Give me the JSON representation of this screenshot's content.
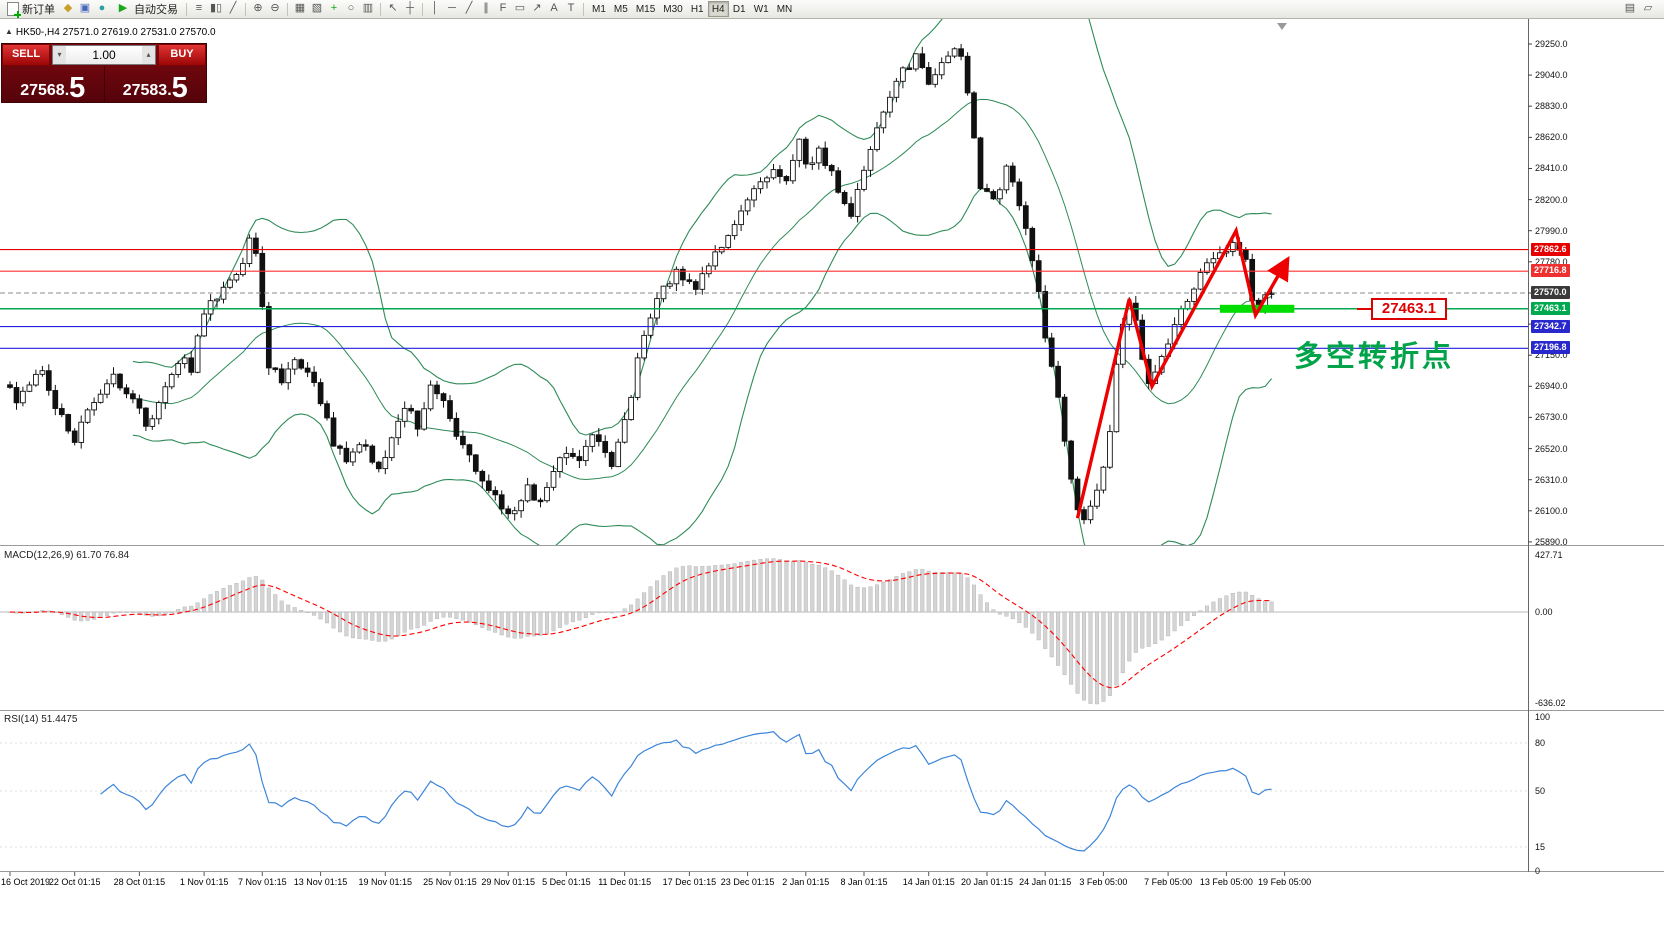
{
  "toolbar": {
    "new_order_label": "新订单",
    "autotrade_label": "自动交易",
    "timeframes": [
      "M1",
      "M5",
      "M15",
      "M30",
      "H1",
      "H4",
      "D1",
      "W1",
      "MN"
    ],
    "active_timeframe": "H4"
  },
  "icons": {
    "collapse_triangle": "▲",
    "spinner_down": "▾",
    "spinner_up": "▴",
    "metaeditor": "◆",
    "guides": "▣",
    "news": "●",
    "autotrade_play": "▶",
    "chart_bars": "≡",
    "chart_candles": "▮▯",
    "chart_line": "╱",
    "zoom_in": "⊕",
    "zoom_out": "⊖",
    "tile": "▦",
    "cascade": "▧",
    "indicators": "+",
    "cycles": "○",
    "templates": "▥",
    "cursor": "↖",
    "crosshair": "┼",
    "vline": "│",
    "hline": "─",
    "trend": "╱",
    "channel": "∥",
    "fibo": "F",
    "shapes": "▭",
    "arrow_obj": "↗",
    "text_obj": "A",
    "label_obj": "T",
    "new_chart": "▤",
    "profiles": "▱"
  },
  "order_panel": {
    "sell_label": "SELL",
    "buy_label": "BUY",
    "volume": "1.00",
    "sell_price_main": "27568.",
    "sell_price_big": "5",
    "buy_price_main": "27583.",
    "buy_price_big": "5"
  },
  "chart": {
    "symbol_info": "HK50-,H4 27571.0 27619.0 27531.0 27570.0"
  },
  "annotations": {
    "price_label": "27463.1",
    "turning_point": "多空转折点"
  },
  "macd": {
    "label": "MACD(12,26,9) 61.70 76.84",
    "axis": [
      "427.71",
      "0.00",
      "-636.02"
    ]
  },
  "rsi": {
    "label": "RSI(14) 51.4475",
    "axis": [
      "100",
      "80",
      "50",
      "15",
      "0"
    ]
  },
  "price_axis": {
    "ticks": [
      "29250.0",
      "29040.0",
      "28830.0",
      "28620.0",
      "28410.0",
      "28200.0",
      "27990.0",
      "27780.0",
      "27570.0",
      "27360.0",
      "27150.0",
      "26940.0",
      "26730.0",
      "26520.0",
      "26310.0",
      "26100.0",
      "25890.0"
    ]
  },
  "time_axis": [
    "16 Oct 2019",
    "22 Oct 01:15",
    "28 Oct 01:15",
    "1 Nov 01:15",
    "7 Nov 01:15",
    "13 Nov 01:15",
    "19 Nov 01:15",
    "25 Nov 01:15",
    "29 Nov 01:15",
    "5 Dec 01:15",
    "11 Dec 01:15",
    "17 Dec 01:15",
    "23 Dec 01:15",
    "2 Jan 01:15",
    "8 Jan 01:15",
    "14 Jan 01:15",
    "20 Jan 01:15",
    "24 Jan 01:15",
    "3 Feb 05:00",
    "7 Feb 05:00",
    "13 Feb 05:00",
    "19 Feb 05:00"
  ],
  "time_axis_indices": [
    0,
    10,
    20,
    30,
    39,
    48,
    58,
    68,
    77,
    86,
    95,
    105,
    114,
    123,
    132,
    142,
    151,
    160,
    169,
    179,
    188,
    197
  ],
  "chart_data": {
    "type": "candlestick",
    "symbol": "HK50-",
    "timeframe": "H4",
    "ohlc_current": {
      "open": 27571.0,
      "high": 27619.0,
      "low": 27531.0,
      "close": 27570.0
    },
    "bid": 27568.5,
    "ask": 27583.5,
    "bid_line": 27570.0,
    "price_axis_range": [
      25870,
      29420
    ],
    "candle_count": 196,
    "anchors": [
      [
        0,
        26950
      ],
      [
        2,
        26860
      ],
      [
        4,
        26980
      ],
      [
        6,
        27030
      ],
      [
        8,
        26800
      ],
      [
        10,
        26650
      ],
      [
        11,
        26580
      ],
      [
        13,
        26750
      ],
      [
        15,
        26900
      ],
      [
        17,
        27010
      ],
      [
        19,
        26900
      ],
      [
        21,
        26780
      ],
      [
        22,
        26660
      ],
      [
        24,
        26850
      ],
      [
        26,
        27000
      ],
      [
        28,
        27120
      ],
      [
        29,
        27050
      ],
      [
        30,
        27300
      ],
      [
        32,
        27500
      ],
      [
        34,
        27600
      ],
      [
        36,
        27720
      ],
      [
        37,
        27800
      ],
      [
        38,
        27930
      ],
      [
        39,
        27850
      ],
      [
        40,
        27480
      ],
      [
        41,
        27060
      ],
      [
        43,
        26990
      ],
      [
        45,
        27130
      ],
      [
        47,
        27030
      ],
      [
        48,
        26950
      ],
      [
        50,
        26750
      ],
      [
        51,
        26550
      ],
      [
        53,
        26430
      ],
      [
        55,
        26580
      ],
      [
        57,
        26450
      ],
      [
        58,
        26380
      ],
      [
        60,
        26560
      ],
      [
        62,
        26800
      ],
      [
        64,
        26680
      ],
      [
        66,
        26950
      ],
      [
        68,
        26820
      ],
      [
        70,
        26600
      ],
      [
        72,
        26450
      ],
      [
        74,
        26320
      ],
      [
        76,
        26180
      ],
      [
        77,
        26120
      ],
      [
        79,
        26080
      ],
      [
        81,
        26250
      ],
      [
        83,
        26140
      ],
      [
        85,
        26380
      ],
      [
        87,
        26500
      ],
      [
        89,
        26450
      ],
      [
        91,
        26600
      ],
      [
        93,
        26480
      ],
      [
        94,
        26400
      ],
      [
        96,
        26700
      ],
      [
        98,
        27100
      ],
      [
        100,
        27400
      ],
      [
        102,
        27600
      ],
      [
        104,
        27700
      ],
      [
        105,
        27680
      ],
      [
        107,
        27620
      ],
      [
        109,
        27760
      ],
      [
        111,
        27890
      ],
      [
        113,
        28050
      ],
      [
        115,
        28200
      ],
      [
        117,
        28330
      ],
      [
        119,
        28420
      ],
      [
        121,
        28330
      ],
      [
        123,
        28620
      ],
      [
        124,
        28420
      ],
      [
        126,
        28520
      ],
      [
        128,
        28360
      ],
      [
        130,
        28180
      ],
      [
        131,
        28120
      ],
      [
        133,
        28420
      ],
      [
        135,
        28650
      ],
      [
        137,
        28870
      ],
      [
        139,
        29060
      ],
      [
        141,
        29170
      ],
      [
        142,
        29100
      ],
      [
        143,
        28980
      ],
      [
        145,
        29120
      ],
      [
        147,
        29230
      ],
      [
        148,
        29150
      ],
      [
        149,
        28950
      ],
      [
        150,
        28600
      ],
      [
        151,
        28300
      ],
      [
        153,
        28180
      ],
      [
        155,
        28420
      ],
      [
        157,
        28150
      ],
      [
        159,
        27800
      ],
      [
        160,
        27600
      ],
      [
        161,
        27300
      ],
      [
        163,
        26900
      ],
      [
        165,
        26300
      ],
      [
        166,
        26120
      ],
      [
        167,
        26050
      ],
      [
        168,
        26150
      ],
      [
        169,
        26250
      ],
      [
        170,
        26420
      ],
      [
        171,
        26600
      ],
      [
        172,
        27100
      ],
      [
        173,
        27350
      ],
      [
        174,
        27520
      ],
      [
        175,
        27380
      ],
      [
        176,
        27150
      ],
      [
        177,
        26980
      ],
      [
        178,
        27050
      ],
      [
        179,
        27120
      ],
      [
        180,
        27250
      ],
      [
        182,
        27430
      ],
      [
        184,
        27620
      ],
      [
        186,
        27740
      ],
      [
        188,
        27820
      ],
      [
        189,
        27860
      ],
      [
        190,
        27880
      ],
      [
        191,
        27830
      ],
      [
        192,
        27780
      ],
      [
        193,
        27500
      ],
      [
        194,
        27470
      ],
      [
        195,
        27570
      ]
    ],
    "levels": [
      {
        "price": 27862.6,
        "color": "#e60000",
        "chip": "#e60000"
      },
      {
        "price": 27716.8,
        "color": "#ff3030",
        "chip": "#ef3030"
      },
      {
        "price": 27463.1,
        "color": "#00a94f",
        "chip": "#00a94f"
      },
      {
        "price": 27342.7,
        "color": "#2020dd",
        "chip": "#2828cc"
      },
      {
        "price": 27196.8,
        "color": "#2020dd",
        "chip": "#2828cc"
      }
    ],
    "indicators": {
      "bollinger": {
        "period": 20,
        "deviation": 2,
        "color": "#2e8b57"
      },
      "macd": {
        "fast": 12,
        "slow": 26,
        "signal": 9,
        "histogram_color": "#d4d4d4",
        "signal_color": "#ff0000"
      },
      "rsi": {
        "period": 14,
        "color": "#3d85d8",
        "levels": [
          80,
          50,
          15
        ]
      }
    },
    "support_zone": {
      "from_index": 187,
      "to_index": 198.5,
      "price": 27463.1,
      "color": "#00dd00"
    },
    "trend_arrow": {
      "color": "#ee0000",
      "points": [
        [
          165,
          26050
        ],
        [
          173,
          27530
        ],
        [
          176.5,
          26940
        ],
        [
          189.5,
          27990
        ],
        [
          192.5,
          27420
        ],
        [
          197.5,
          27800
        ]
      ]
    }
  }
}
